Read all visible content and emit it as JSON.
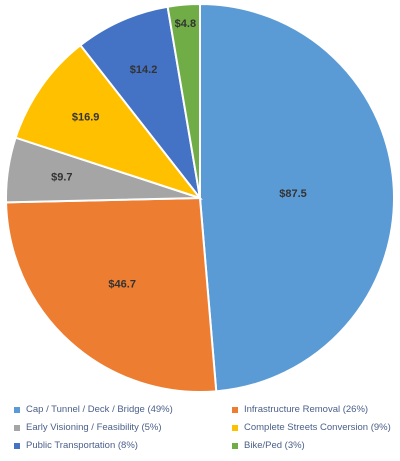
{
  "chart_data": {
    "type": "pie",
    "title": "",
    "slices": [
      {
        "label": "Cap / Tunnel / Deck / Bridge (49%)",
        "value": 87.5,
        "display": "$87.5",
        "color": "#5b9bd5"
      },
      {
        "label": "Infrastructure Removal (26%)",
        "value": 46.7,
        "display": "$46.7",
        "color": "#ed7d31"
      },
      {
        "label": "Early Visioning / Feasibility (5%)",
        "value": 9.7,
        "display": "$9.7",
        "color": "#a5a5a5"
      },
      {
        "label": "Complete Streets Conversion (9%)",
        "value": 16.9,
        "display": "$16.9",
        "color": "#ffc000"
      },
      {
        "label": "Public Transportation (8%)",
        "value": 14.2,
        "display": "$14.2",
        "color": "#4472c4"
      },
      {
        "label": "Bike/Ped (3%)",
        "value": 4.8,
        "display": "$4.8",
        "color": "#70ad47"
      }
    ],
    "start_angle": "12 o'clock",
    "direction": "clockwise",
    "legend_position": "bottom"
  }
}
